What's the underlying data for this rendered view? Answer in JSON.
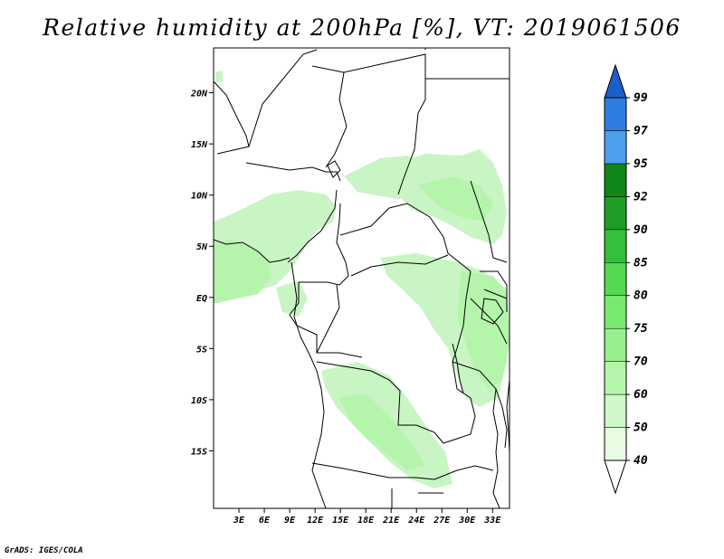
{
  "title": "Relative humidity at 200hPa [%], VT: 2019061506",
  "credit": "GrADS: IGES/COLA",
  "map": {
    "projection": "lat-lon",
    "lon_range": [
      0,
      35
    ],
    "lat_range": [
      -20,
      25
    ],
    "field_color": "#c8f5c3",
    "lon_labels": [
      "3E",
      "6E",
      "9E",
      "12E",
      "15E",
      "18E",
      "21E",
      "24E",
      "27E",
      "30E",
      "33E"
    ],
    "lat_labels": [
      "20N",
      "15N",
      "10N",
      "5N",
      "EQ",
      "5S",
      "10S",
      "15S"
    ]
  },
  "colorbar": {
    "levels": [
      "40",
      "50",
      "60",
      "70",
      "75",
      "80",
      "85",
      "90",
      "92",
      "95",
      "97",
      "99"
    ],
    "colors": [
      "#ffffff",
      "#e7fde2",
      "#cdf9c6",
      "#b4f5ab",
      "#98ef8e",
      "#79e96f",
      "#55d952",
      "#33c03a",
      "#1f9e26",
      "#0f8617",
      "#4f9ff0",
      "#2f7de0",
      "#1a5fcc"
    ]
  }
}
